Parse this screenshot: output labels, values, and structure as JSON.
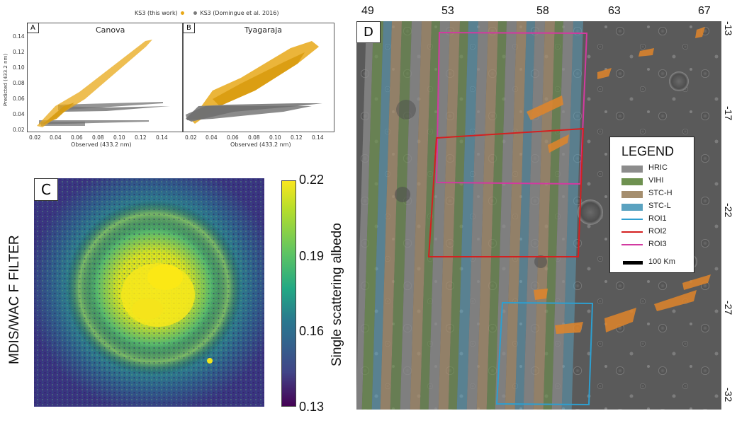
{
  "figure": {
    "panel_labels": [
      "A",
      "B",
      "C",
      "D"
    ],
    "scatter": {
      "legend": {
        "this_work_label": "KS3 (this work)",
        "domingue_label": "KS3 (Domingue et al. 2016)",
        "this_work_color": "#e8a818",
        "domingue_color": "#7a7a7a"
      },
      "panels": [
        {
          "label": "A",
          "title": "Canova"
        },
        {
          "label": "B",
          "title": "Tyagaraja"
        }
      ],
      "y_ticks": [
        "0.02",
        "0.04",
        "0.06",
        "0.08",
        "0.10",
        "0.12",
        "0.14"
      ],
      "x_ticks": [
        "0.02",
        "0.04",
        "0.06",
        "0.08",
        "0.10",
        "0.12",
        "0.14"
      ],
      "xlabel": "Observed (433.2 nm)",
      "ylabel": "Predicted (433.2 nm)"
    },
    "albedo_map": {
      "label": "C",
      "side_title": "MDIS/WAC F FILTER",
      "colorbar_label": "Single scattering albedo",
      "colorbar_ticks": [
        "0.22",
        "0.19",
        "0.16",
        "0.13"
      ]
    },
    "coverage_map": {
      "label": "D",
      "longitudes": [
        "49",
        "53",
        "58",
        "63",
        "67"
      ],
      "latitudes": [
        "-13",
        "-17",
        "-22",
        "-27",
        "-32"
      ],
      "legend": {
        "title": "LEGEND",
        "items": [
          {
            "label": "HRIC",
            "color": "#8c8c8c",
            "kind": "box"
          },
          {
            "label": "VIHI",
            "color": "#6e9150",
            "kind": "box"
          },
          {
            "label": "STC-H",
            "color": "#a58e6e",
            "kind": "box"
          },
          {
            "label": "STC-L",
            "color": "#5aa2c0",
            "kind": "box"
          },
          {
            "label": "ROI1",
            "color": "#2d9fd0",
            "kind": "line"
          },
          {
            "label": "ROI2",
            "color": "#d42020",
            "kind": "line"
          },
          {
            "label": "ROI3",
            "color": "#d23aa0",
            "kind": "line"
          }
        ],
        "scale_label": "100 Km"
      }
    }
  }
}
